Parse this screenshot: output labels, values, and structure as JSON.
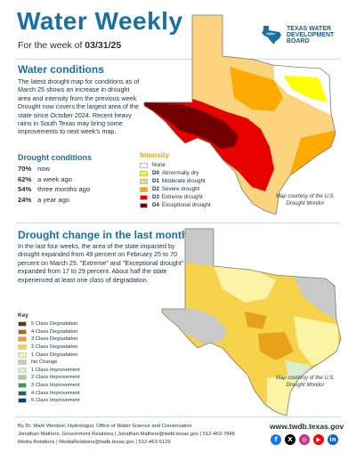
{
  "header": {
    "title": "Water Weekly",
    "subtitle_prefix": "For the week of ",
    "week_date": "03/31/25",
    "logo_text": "TEXAS WATER DEVELOPMENT BOARD"
  },
  "water_conditions": {
    "title": "Water conditions",
    "body": "The latest drought map for conditions as of March 25 shows an increase in drought area and intensity from the previous week. Drought now covers the largest area of the state since October 2024. Recent heavy rains in South Texas may bring some improvements to next week's map."
  },
  "drought_conditions": {
    "title": "Drought conditions",
    "items": [
      {
        "value": "70%",
        "label": "now"
      },
      {
        "value": "62%",
        "label": "a week ago"
      },
      {
        "value": "54%",
        "label": "three months ago"
      },
      {
        "value": "24%",
        "label": "a year ago"
      }
    ]
  },
  "intensity_legend": {
    "title": "Intensity",
    "items": [
      {
        "code": "",
        "label": "None",
        "color": "#ffffff"
      },
      {
        "code": "D0",
        "label": "Abnormally dry",
        "color": "#ffff00"
      },
      {
        "code": "D1",
        "label": "Moderate drought",
        "color": "#fcd37f"
      },
      {
        "code": "D2",
        "label": "Severe drought",
        "color": "#ffaa00"
      },
      {
        "code": "D3",
        "label": "Extreme drought",
        "color": "#e60000"
      },
      {
        "code": "D4",
        "label": "Exceptional drought",
        "color": "#730000"
      }
    ]
  },
  "map1_credit": "Map courtesy of the U.S. Drought Monitor",
  "drought_change": {
    "title": "Drought change in the last month",
    "body": "In the last four weeks, the area of the state impacted by drought expanded from 49 percent on February 25 to 70 percent on March 25. \"Extreme\" and \"Exceptional drought\" expanded from 17 to 29 percent. About half the state experienced at least one class of degradation."
  },
  "change_key": {
    "title": "Key",
    "items": [
      {
        "label": "5 Class Degradation",
        "color": "#5c3a0e"
      },
      {
        "label": "4 Class Degradation",
        "color": "#a66a10"
      },
      {
        "label": "3 Class Degradation",
        "color": "#e8a21a"
      },
      {
        "label": "2 Class Degradation",
        "color": "#f6d34a"
      },
      {
        "label": "1 Class Degradation",
        "color": "#fbf3a6"
      },
      {
        "label": "No Change",
        "color": "#c9c9c9"
      },
      {
        "label": "1 Class Improvement",
        "color": "#d8eed5"
      },
      {
        "label": "2 Class Improvement",
        "color": "#9fd39a"
      },
      {
        "label": "3 Class Improvement",
        "color": "#3f9a58"
      },
      {
        "label": "4 Class Improvement",
        "color": "#1d6a4a"
      },
      {
        "label": "5 Class Improvement",
        "color": "#123f78"
      }
    ]
  },
  "map2_credit": "Map courtesy of the U.S. Drought Monitor",
  "footer": {
    "line1": "By Dr. Mark Wentzel, Hydrologist, Office of Water Science and Conservation",
    "line2": "Jonathan Mathers, Government Relations | Jonathan.Mathers@twdb.texas.gov | 512-463-7848",
    "line3": "Media Relations | MediaRelations@twdb.texas.gov | 512-463-5129",
    "website": "www.twdb.texas.gov",
    "social": [
      {
        "name": "facebook-icon",
        "glyph": "f",
        "color": "#1877f2"
      },
      {
        "name": "x-icon",
        "glyph": "X",
        "color": "#000000"
      },
      {
        "name": "instagram-icon",
        "glyph": "◎",
        "color": "#c13584"
      },
      {
        "name": "youtube-icon",
        "glyph": "▶",
        "color": "#ff0000"
      },
      {
        "name": "linkedin-icon",
        "glyph": "in",
        "color": "#0a66c2"
      }
    ]
  }
}
